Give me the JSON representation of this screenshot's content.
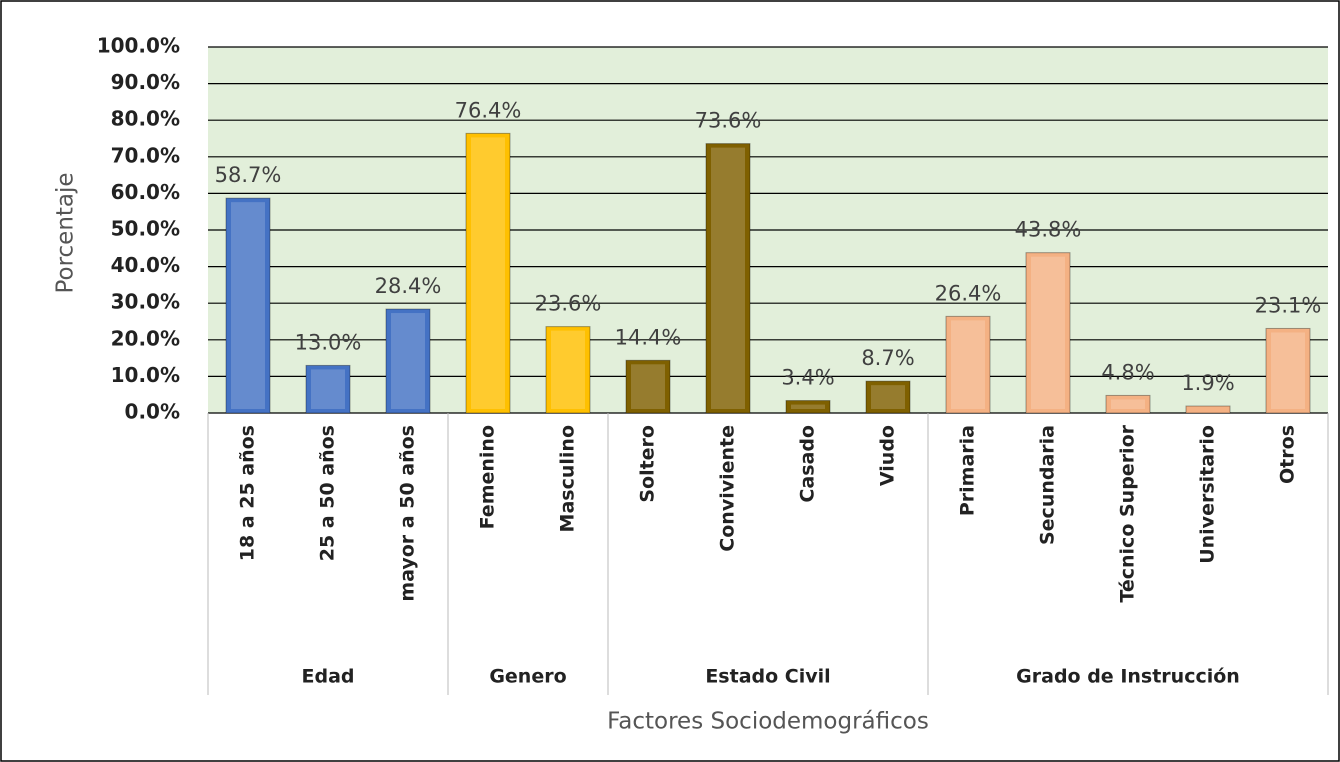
{
  "chart_data": {
    "type": "bar",
    "ylabel": "Porcentaje",
    "xlabel": "Factores Sociodemográficos",
    "ylim": [
      0,
      100
    ],
    "yticks": [
      {
        "value": 0,
        "label": "0.0%"
      },
      {
        "value": 10,
        "label": "10.0%"
      },
      {
        "value": 20,
        "label": "20.0%"
      },
      {
        "value": 30,
        "label": "30.0%"
      },
      {
        "value": 40,
        "label": "40.0%"
      },
      {
        "value": 50,
        "label": "50.0%"
      },
      {
        "value": 60,
        "label": "60.0%"
      },
      {
        "value": 70,
        "label": "70.0%"
      },
      {
        "value": 80,
        "label": "80.0%"
      },
      {
        "value": 90,
        "label": "90.0%"
      },
      {
        "value": 100,
        "label": "100.0%"
      }
    ],
    "grid": true,
    "series": [
      {
        "name": "Edad",
        "color": "#4472c4",
        "categories": [
          "18 a 25 años",
          "25 a 50 años",
          "mayor a 50 años"
        ],
        "values": [
          58.7,
          13.0,
          28.4
        ],
        "value_labels": [
          "58.7%",
          "13.0%",
          "28.4%"
        ]
      },
      {
        "name": "Genero",
        "color": "#ffc000",
        "categories": [
          "Femenino",
          "Masculino"
        ],
        "values": [
          76.4,
          23.6
        ],
        "value_labels": [
          "76.4%",
          "23.6%"
        ]
      },
      {
        "name": "Estado Civil",
        "color": "#7f6000",
        "categories": [
          "Soltero",
          "Conviviente",
          "Casado",
          "Viudo"
        ],
        "values": [
          14.4,
          73.6,
          3.4,
          8.7
        ],
        "value_labels": [
          "14.4%",
          "73.6%",
          "3.4%",
          "8.7%"
        ]
      },
      {
        "name": "Grado de Instrucción",
        "color": "#f4b183",
        "categories": [
          "Primaria",
          "Secundaria",
          "Técnico Superior",
          "Universitario",
          "Otros"
        ],
        "values": [
          26.4,
          43.8,
          4.8,
          1.9,
          23.1
        ],
        "value_labels": [
          "26.4%",
          "43.8%",
          "4.8%",
          "1.9%",
          "23.1%"
        ]
      }
    ]
  }
}
